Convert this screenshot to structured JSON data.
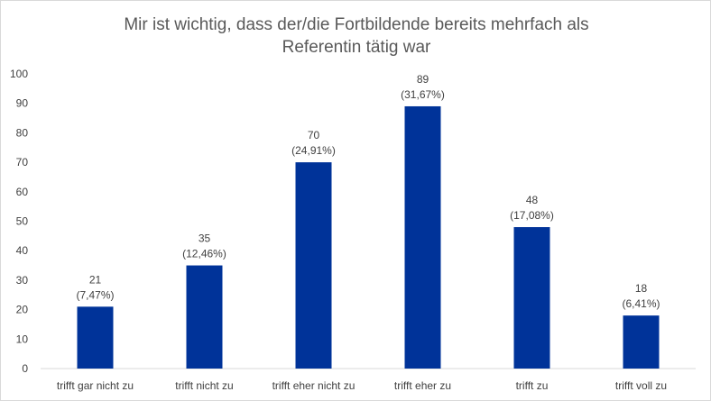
{
  "chart_data": {
    "type": "bar",
    "title_lines": [
      "Mir ist wichtig, dass der/die Fortbildende bereits mehrfach als",
      "Referentin tätig war"
    ],
    "categories": [
      "trifft gar nicht zu",
      "trifft nicht zu",
      "trifft eher nicht zu",
      "trifft eher zu",
      "trifft zu",
      "trifft voll zu"
    ],
    "values": [
      21,
      35,
      70,
      89,
      48,
      18
    ],
    "percent_labels": [
      "(7,47%)",
      "(12,46%)",
      "(24,91%)",
      "(31,67%)",
      "(17,08%)",
      "(6,41%)"
    ],
    "ylim": [
      0,
      100
    ],
    "yticks": [
      0,
      10,
      20,
      30,
      40,
      50,
      60,
      70,
      80,
      90,
      100
    ],
    "grid": false,
    "legend": "none",
    "colors": {
      "bar": "#003399",
      "text": "#404040",
      "title": "#595959",
      "axis": "#d9d9d9"
    }
  }
}
